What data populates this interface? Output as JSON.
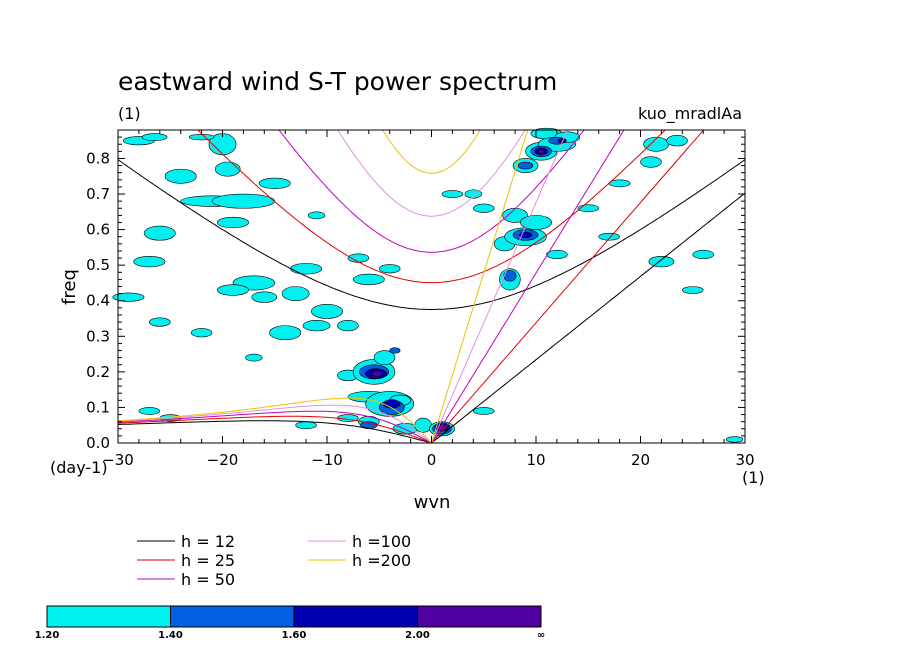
{
  "title": "eastward wind S-T power spectrum",
  "subtitle_left": "(1)",
  "subtitle_right": "kuo_mradlAa",
  "chart_data": {
    "type": "contour",
    "title": "eastward wind S-T power spectrum",
    "xlabel": "wvn",
    "ylabel": "freq",
    "x_unit": "(1)",
    "y_unit": "(day-1)",
    "xlim": [
      -30,
      30
    ],
    "ylim": [
      0,
      0.88
    ],
    "xticks": [
      -30,
      -20,
      -10,
      0,
      10,
      20,
      30
    ],
    "yticks": [
      0.0,
      0.1,
      0.2,
      0.3,
      0.4,
      0.5,
      0.6,
      0.7,
      0.8
    ],
    "dispersion_curves": [
      {
        "label": "h = 12",
        "h": 12,
        "color": "#000000"
      },
      {
        "label": "h = 25",
        "h": 25,
        "color": "#e00000"
      },
      {
        "label": "h = 50",
        "h": 50,
        "color": "#c000c0"
      },
      {
        "label": "h =100",
        "h": 100,
        "color": "#e090e0"
      },
      {
        "label": "h =200",
        "h": 200,
        "color": "#f0c000"
      }
    ],
    "levels": [
      "1.20",
      "1.40",
      "1.60",
      "2.00",
      "∞"
    ],
    "level_colors": [
      "#00f0f0",
      "#0060e0",
      "#0000b0",
      "#5000a0"
    ]
  }
}
